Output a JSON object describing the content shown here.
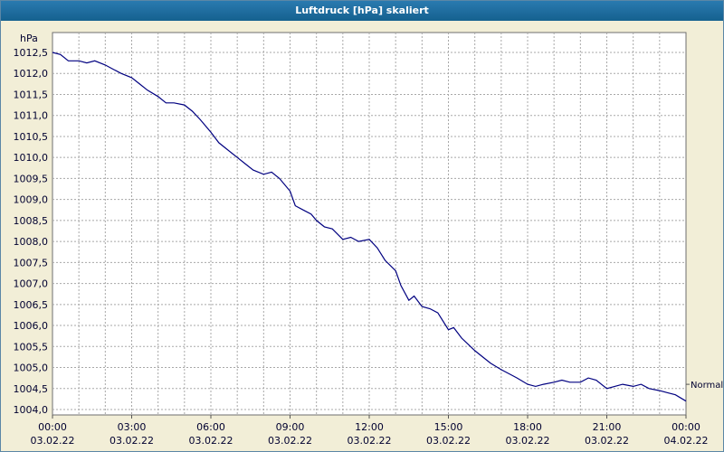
{
  "window": {
    "title": "Luftdruck [hPa] skaliert"
  },
  "colors": {
    "titlebar": "#1a6ca4",
    "title_text": "#ffffff",
    "background": "#f2eed7",
    "plot_background": "#ffffff",
    "plot_border": "#6f6f6f",
    "grid": "#a8a8a8",
    "line": "#000080",
    "label_text": "#000030"
  },
  "chart_data": {
    "type": "line",
    "title": "Luftdruck [hPa] skaliert",
    "xlabel": "",
    "ylabel": "hPa",
    "ylim": [
      1004.0,
      1012.5
    ],
    "x_range_hours": [
      0,
      24
    ],
    "grid": "on",
    "y_ticks": [
      {
        "label": "1012,5",
        "value": 1012.5
      },
      {
        "label": "1012,0",
        "value": 1012.0
      },
      {
        "label": "1011,5",
        "value": 1011.5
      },
      {
        "label": "1011,0",
        "value": 1011.0
      },
      {
        "label": "1010,5",
        "value": 1010.5
      },
      {
        "label": "1010,0",
        "value": 1010.0
      },
      {
        "label": "1009,5",
        "value": 1009.5
      },
      {
        "label": "1009,0",
        "value": 1009.0
      },
      {
        "label": "1008,5",
        "value": 1008.5
      },
      {
        "label": "1008,0",
        "value": 1008.0
      },
      {
        "label": "1007,5",
        "value": 1007.5
      },
      {
        "label": "1007,0",
        "value": 1007.0
      },
      {
        "label": "1006,5",
        "value": 1006.5
      },
      {
        "label": "1006,0",
        "value": 1006.0
      },
      {
        "label": "1005,5",
        "value": 1005.5
      },
      {
        "label": "1005,0",
        "value": 1005.0
      },
      {
        "label": "1004,5",
        "value": 1004.5
      },
      {
        "label": "1004,0",
        "value": 1004.0
      }
    ],
    "x_ticks": [
      {
        "time": "00:00",
        "date": "03.02.22",
        "hour": 0
      },
      {
        "time": "03:00",
        "date": "03.02.22",
        "hour": 3
      },
      {
        "time": "06:00",
        "date": "03.02.22",
        "hour": 6
      },
      {
        "time": "09:00",
        "date": "03.02.22",
        "hour": 9
      },
      {
        "time": "12:00",
        "date": "03.02.22",
        "hour": 12
      },
      {
        "time": "15:00",
        "date": "03.02.22",
        "hour": 15
      },
      {
        "time": "18:00",
        "date": "03.02.22",
        "hour": 18
      },
      {
        "time": "21:00",
        "date": "03.02.22",
        "hour": 21
      },
      {
        "time": "00:00",
        "date": "04.02.22",
        "hour": 24
      }
    ],
    "annotation": {
      "label": "Normal",
      "value": 1004.6
    },
    "series": [
      {
        "name": "Luftdruck",
        "points": [
          [
            0,
            1012.5
          ],
          [
            0.3,
            1012.45
          ],
          [
            0.6,
            1012.3
          ],
          [
            1,
            1012.3
          ],
          [
            1.3,
            1012.25
          ],
          [
            1.6,
            1012.3
          ],
          [
            2,
            1012.2
          ],
          [
            2.3,
            1012.1
          ],
          [
            2.6,
            1012.0
          ],
          [
            3,
            1011.9
          ],
          [
            3.3,
            1011.75
          ],
          [
            3.6,
            1011.6
          ],
          [
            4,
            1011.45
          ],
          [
            4.3,
            1011.3
          ],
          [
            4.6,
            1011.3
          ],
          [
            5,
            1011.25
          ],
          [
            5.3,
            1011.1
          ],
          [
            5.6,
            1010.9
          ],
          [
            6,
            1010.6
          ],
          [
            6.3,
            1010.35
          ],
          [
            6.6,
            1010.2
          ],
          [
            7,
            1010.0
          ],
          [
            7.3,
            1009.85
          ],
          [
            7.6,
            1009.7
          ],
          [
            8,
            1009.6
          ],
          [
            8.3,
            1009.65
          ],
          [
            8.6,
            1009.5
          ],
          [
            9,
            1009.2
          ],
          [
            9.2,
            1008.85
          ],
          [
            9.5,
            1008.75
          ],
          [
            9.8,
            1008.65
          ],
          [
            10,
            1008.5
          ],
          [
            10.3,
            1008.35
          ],
          [
            10.6,
            1008.3
          ],
          [
            11,
            1008.05
          ],
          [
            11.3,
            1008.1
          ],
          [
            11.6,
            1008.0
          ],
          [
            12,
            1008.05
          ],
          [
            12.3,
            1007.85
          ],
          [
            12.6,
            1007.55
          ],
          [
            13,
            1007.3
          ],
          [
            13.2,
            1006.95
          ],
          [
            13.5,
            1006.6
          ],
          [
            13.7,
            1006.7
          ],
          [
            14,
            1006.45
          ],
          [
            14.3,
            1006.4
          ],
          [
            14.6,
            1006.3
          ],
          [
            15,
            1005.9
          ],
          [
            15.2,
            1005.95
          ],
          [
            15.5,
            1005.7
          ],
          [
            16,
            1005.4
          ],
          [
            16.3,
            1005.25
          ],
          [
            16.6,
            1005.1
          ],
          [
            17,
            1004.95
          ],
          [
            17.3,
            1004.85
          ],
          [
            17.6,
            1004.75
          ],
          [
            18,
            1004.6
          ],
          [
            18.3,
            1004.55
          ],
          [
            18.6,
            1004.6
          ],
          [
            19,
            1004.65
          ],
          [
            19.3,
            1004.7
          ],
          [
            19.6,
            1004.65
          ],
          [
            20,
            1004.65
          ],
          [
            20.3,
            1004.75
          ],
          [
            20.6,
            1004.7
          ],
          [
            21,
            1004.5
          ],
          [
            21.3,
            1004.55
          ],
          [
            21.6,
            1004.6
          ],
          [
            22,
            1004.55
          ],
          [
            22.3,
            1004.6
          ],
          [
            22.6,
            1004.5
          ],
          [
            23,
            1004.45
          ],
          [
            23.3,
            1004.4
          ],
          [
            23.6,
            1004.35
          ],
          [
            24,
            1004.2
          ]
        ]
      }
    ]
  }
}
